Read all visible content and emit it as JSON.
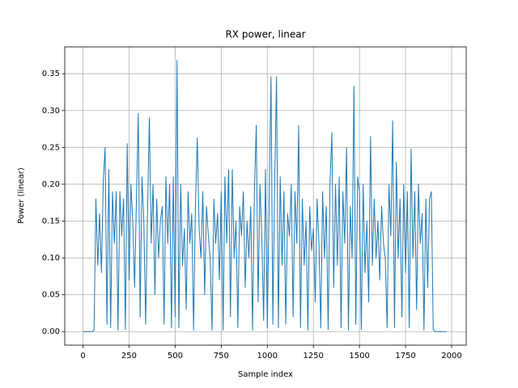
{
  "chart_data": {
    "type": "line",
    "title": "RX power, linear",
    "x_label": "Sample index",
    "y_label": "Power (linear)",
    "x": [
      0,
      10,
      20,
      30,
      40,
      50,
      60,
      70,
      80,
      90,
      100,
      110,
      120,
      130,
      140,
      150,
      160,
      170,
      180,
      190,
      200,
      210,
      220,
      230,
      240,
      250,
      260,
      270,
      280,
      290,
      300,
      310,
      320,
      330,
      340,
      350,
      360,
      370,
      380,
      390,
      400,
      410,
      420,
      430,
      440,
      450,
      460,
      470,
      480,
      490,
      500,
      510,
      520,
      530,
      540,
      550,
      560,
      570,
      580,
      590,
      600,
      610,
      620,
      630,
      640,
      650,
      660,
      670,
      680,
      690,
      700,
      710,
      720,
      730,
      740,
      750,
      760,
      770,
      780,
      790,
      800,
      810,
      820,
      830,
      840,
      850,
      860,
      870,
      880,
      890,
      900,
      910,
      920,
      930,
      940,
      950,
      960,
      970,
      980,
      990,
      1000,
      1010,
      1020,
      1030,
      1040,
      1050,
      1060,
      1070,
      1080,
      1090,
      1100,
      1110,
      1120,
      1130,
      1140,
      1150,
      1160,
      1170,
      1180,
      1190,
      1200,
      1210,
      1220,
      1230,
      1240,
      1250,
      1260,
      1270,
      1280,
      1290,
      1300,
      1310,
      1320,
      1330,
      1340,
      1350,
      1360,
      1370,
      1380,
      1390,
      1400,
      1410,
      1420,
      1430,
      1440,
      1450,
      1460,
      1470,
      1480,
      1490,
      1500,
      1510,
      1520,
      1530,
      1540,
      1550,
      1560,
      1570,
      1580,
      1590,
      1600,
      1610,
      1620,
      1630,
      1640,
      1650,
      1660,
      1670,
      1680,
      1690,
      1700,
      1710,
      1720,
      1730,
      1740,
      1750,
      1760,
      1770,
      1780,
      1790,
      1800,
      1810,
      1820,
      1830,
      1840,
      1850,
      1860,
      1870,
      1880,
      1890,
      1900,
      1910,
      1920,
      1930,
      1940,
      1950,
      1960,
      1970
    ],
    "series": [
      {
        "color": "#1f77b4",
        "values": [
          0,
          0,
          0,
          0,
          0,
          0,
          0.002,
          0.18,
          0.09,
          0.16,
          0.08,
          0.205,
          0.25,
          0.01,
          0.22,
          0.005,
          0.19,
          0.12,
          0.19,
          0.002,
          0.19,
          0.13,
          0.18,
          0.003,
          0.255,
          0.07,
          0.2,
          0.15,
          0.06,
          0.18,
          0.296,
          0.02,
          0.21,
          0.15,
          0.01,
          0.16,
          0.29,
          0.12,
          0.2,
          0.05,
          0.18,
          0.1,
          0.15,
          0.17,
          0.01,
          0.21,
          0.12,
          0.2,
          0.005,
          0.21,
          0.02,
          0.368,
          0.005,
          0.2,
          0.09,
          0.14,
          0.03,
          0.19,
          0.12,
          0.16,
          0.002,
          0.17,
          0.263,
          0.14,
          0.1,
          0.19,
          0.05,
          0.17,
          0.13,
          0.1,
          0.002,
          0.18,
          0.12,
          0.16,
          0.07,
          0.19,
          0.002,
          0.21,
          0.12,
          0.22,
          0.02,
          0.22,
          0.1,
          0.15,
          0.005,
          0.17,
          0.13,
          0.19,
          0.06,
          0.15,
          0.1,
          0.17,
          0.002,
          0.19,
          0.28,
          0.04,
          0.2,
          0.13,
          0.015,
          0.22,
          0.005,
          0.18,
          0.346,
          0.01,
          0.2,
          0.346,
          0.005,
          0.21,
          0.09,
          0.19,
          0.01,
          0.16,
          0.13,
          0.2,
          0.02,
          0.19,
          0.12,
          0.28,
          0.005,
          0.18,
          0.09,
          0.15,
          0.002,
          0.17,
          0.11,
          0.14,
          0.04,
          0.18,
          0.12,
          0.005,
          0.19,
          0.1,
          0.17,
          0.003,
          0.2,
          0.27,
          0.06,
          0.2,
          0.09,
          0.21,
          0.005,
          0.19,
          0.12,
          0.25,
          0.002,
          0.17,
          0.1,
          0.333,
          0.01,
          0.21,
          0.19,
          0.003,
          0.2,
          0.08,
          0.15,
          0.04,
          0.265,
          0.09,
          0.18,
          0.1,
          0.15,
          0.07,
          0.17,
          0.12,
          0.1,
          0.005,
          0.2,
          0.13,
          0.286,
          0.005,
          0.23,
          0.1,
          0.18,
          0.02,
          0.2,
          0.08,
          0.19,
          0.005,
          0.248,
          0.1,
          0.19,
          0.03,
          0.2,
          0.12,
          0.16,
          0.002,
          0.18,
          0.06,
          0.18,
          0.19,
          0.003,
          0,
          0,
          0,
          0,
          0,
          0,
          0
        ]
      }
    ],
    "xlim": [
      -99,
      2079
    ],
    "ylim": [
      -0.0184,
      0.3864
    ],
    "xticks": [
      0,
      250,
      500,
      750,
      1000,
      1250,
      1500,
      1750,
      2000
    ],
    "yticks": [
      {
        "value": 0,
        "label": "0.00"
      },
      0.05,
      {
        "value": 0.1,
        "label": "0.10"
      },
      0.15,
      {
        "value": 0.2,
        "label": "0.20"
      },
      0.25,
      {
        "value": 0.3,
        "label": "0.30"
      },
      0.35
    ],
    "grid": true
  }
}
